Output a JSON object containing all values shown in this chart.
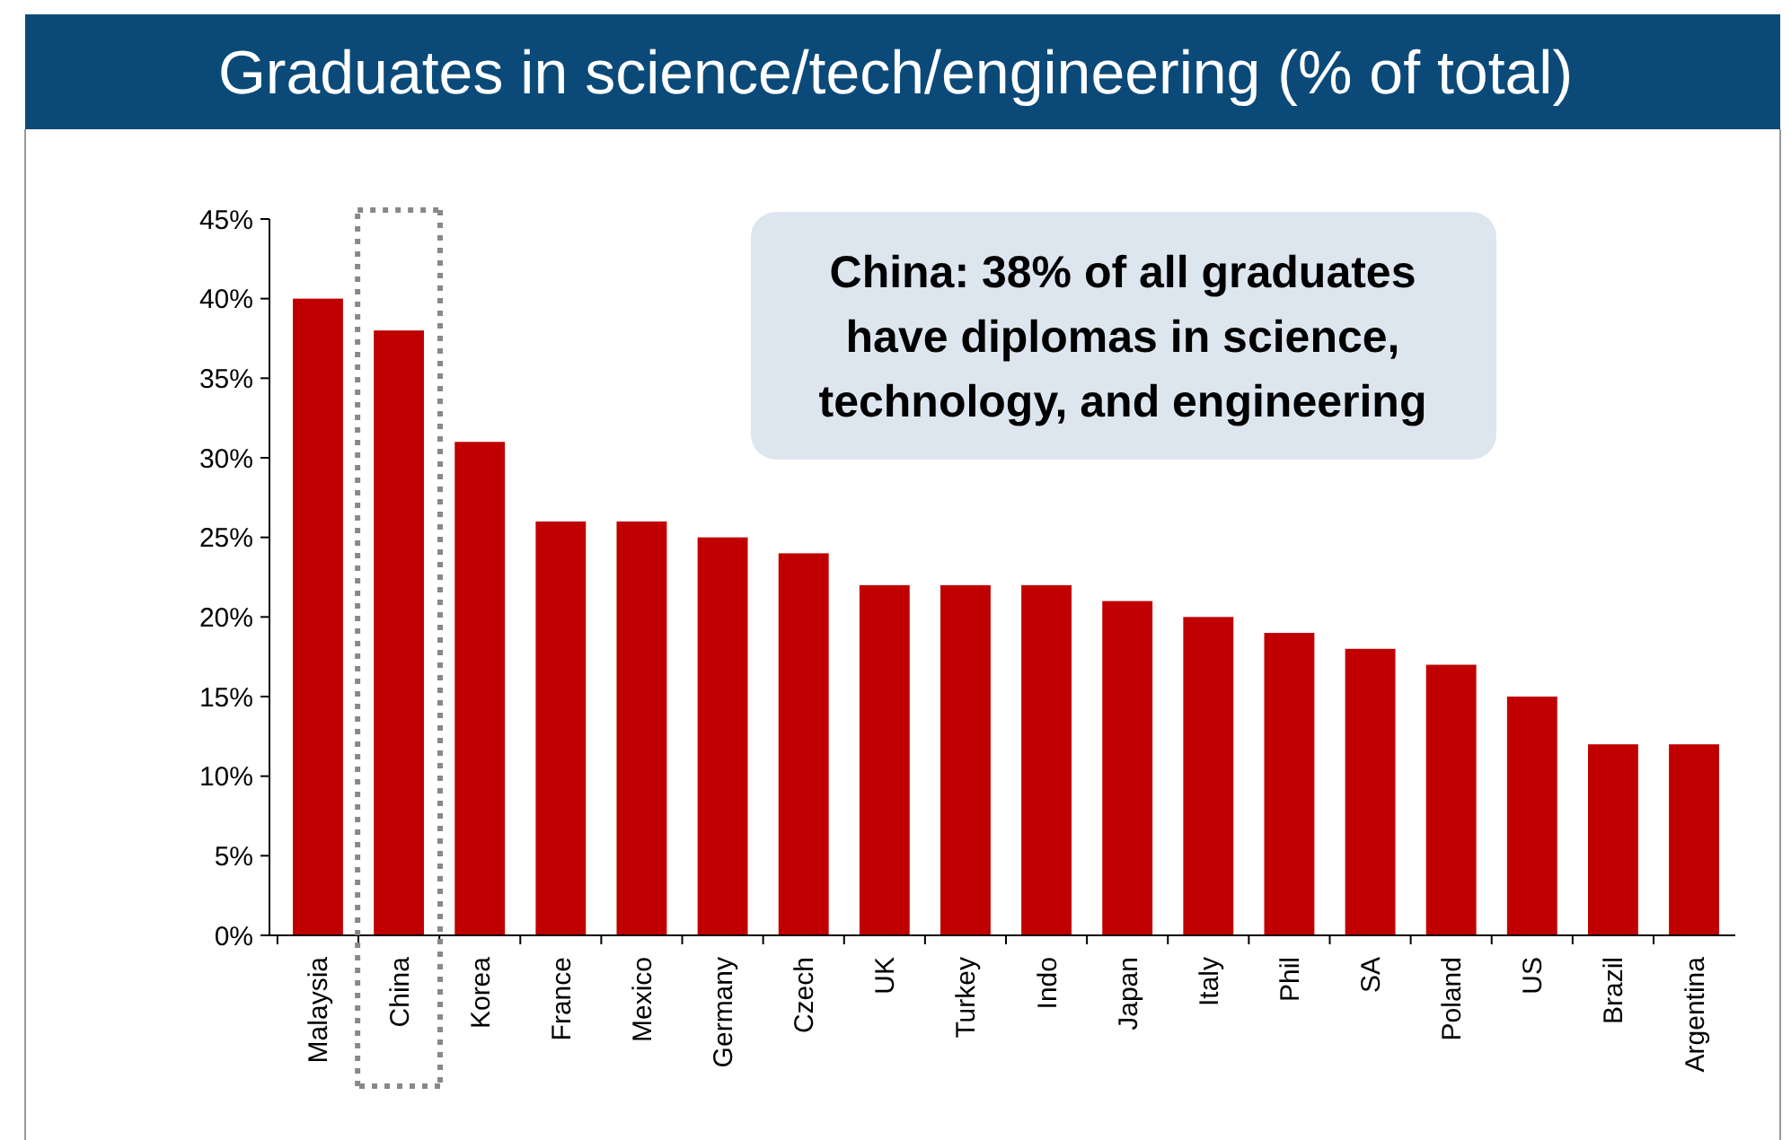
{
  "chart_data": {
    "type": "bar",
    "title": "Graduates in science/tech/engineering (% of total)",
    "categories": [
      "Malaysia",
      "China",
      "Korea",
      "France",
      "Mexico",
      "Germany",
      "Czech",
      "UK",
      "Turkey",
      "Indo",
      "Japan",
      "Italy",
      "Phil",
      "SA",
      "Poland",
      "US",
      "Brazil",
      "Argentina"
    ],
    "values": [
      40,
      38,
      31,
      26,
      26,
      25,
      24,
      22,
      22,
      22,
      21,
      20,
      19,
      18,
      17,
      15,
      12,
      12
    ],
    "color": "#c00000",
    "ylim": [
      0,
      45
    ],
    "yticks": [
      {
        "value": 0,
        "label": "0%"
      },
      {
        "value": 5,
        "label": "5%"
      },
      {
        "value": 10,
        "label": "10%"
      },
      {
        "value": 15,
        "label": "15%"
      },
      {
        "value": 20,
        "label": "20%"
      },
      {
        "value": 25,
        "label": "25%"
      },
      {
        "value": 30,
        "label": "30%"
      },
      {
        "value": 35,
        "label": "35%"
      },
      {
        "value": 40,
        "label": "40%"
      },
      {
        "value": 45,
        "label": "45%"
      }
    ],
    "grid": false,
    "annotations": [
      "China: 38% of all graduates have diplomas in science, technology, and engineering"
    ]
  }
}
